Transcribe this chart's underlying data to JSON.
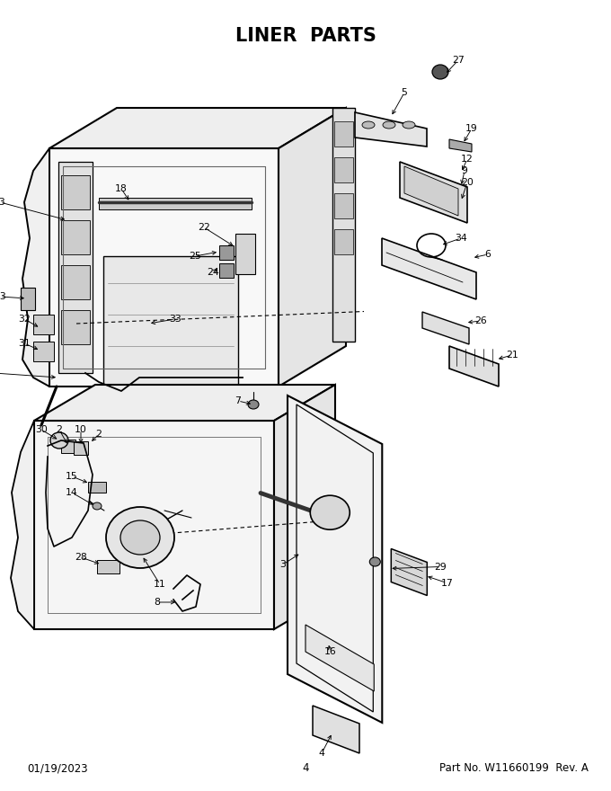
{
  "title": "LINER  PARTS",
  "title_fontsize": 15,
  "title_weight": "bold",
  "footer_left": "01/19/2023",
  "footer_center": "4",
  "footer_right": "Part No. W11660199  Rev. A",
  "footer_fontsize": 8.5,
  "bg_color": "#ffffff",
  "line_color": "#000000",
  "fill_light": "#f5f5f5",
  "fill_mid": "#e8e8e8",
  "fill_dark": "#d0d0d0"
}
